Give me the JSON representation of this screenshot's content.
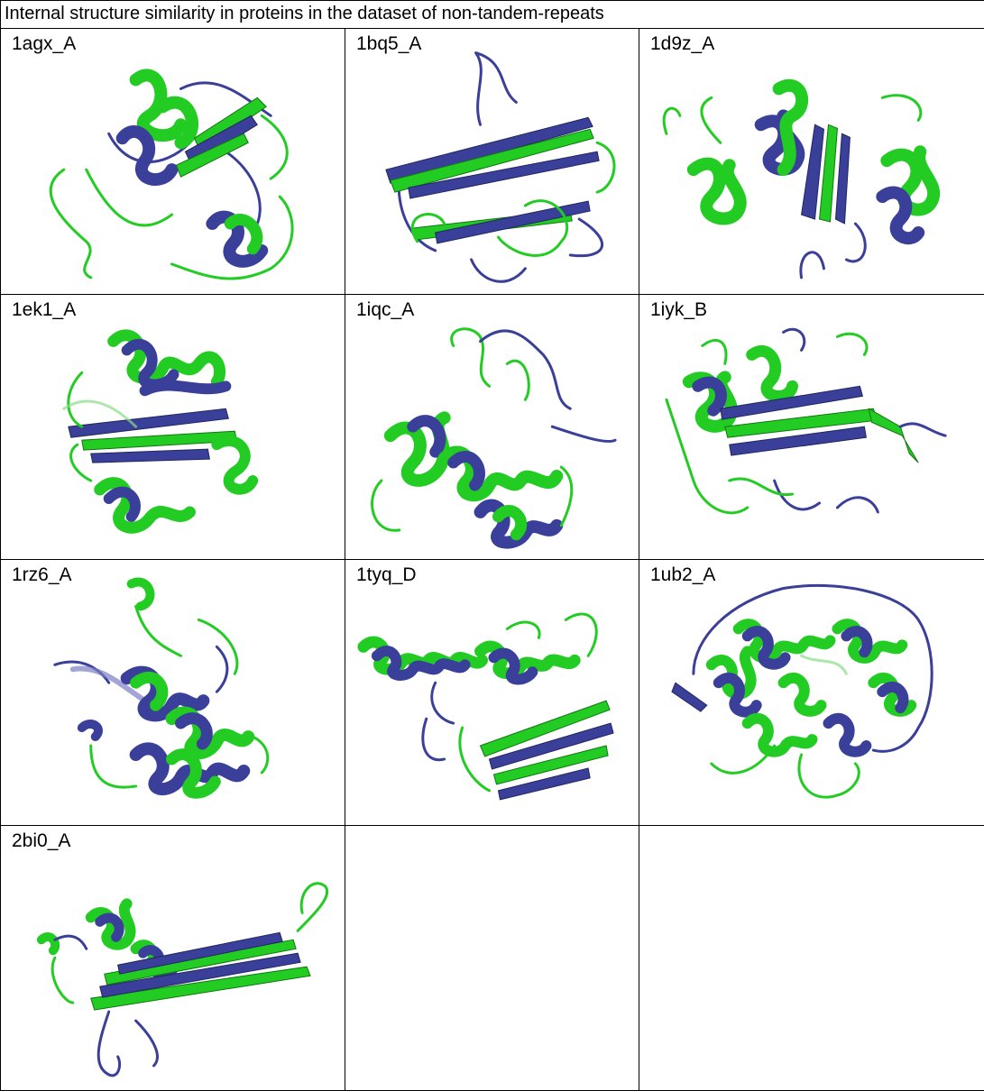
{
  "figure": {
    "title": "Internal structure similarity in proteins in the dataset of non-tandem-repeats",
    "cells": [
      {
        "label": "1agx_A"
      },
      {
        "label": "1bq5_A"
      },
      {
        "label": "1d9z_A"
      },
      {
        "label": "1ek1_A"
      },
      {
        "label": "1iqc_A"
      },
      {
        "label": "1iyk_B"
      },
      {
        "label": "1rz6_A"
      },
      {
        "label": "1tyq_D"
      },
      {
        "label": "1ub2_A"
      },
      {
        "label": "2bi0_A"
      }
    ],
    "colors": {
      "structure_a": "#22cc22",
      "structure_b": "#3a3f99",
      "border": "#000000"
    }
  }
}
